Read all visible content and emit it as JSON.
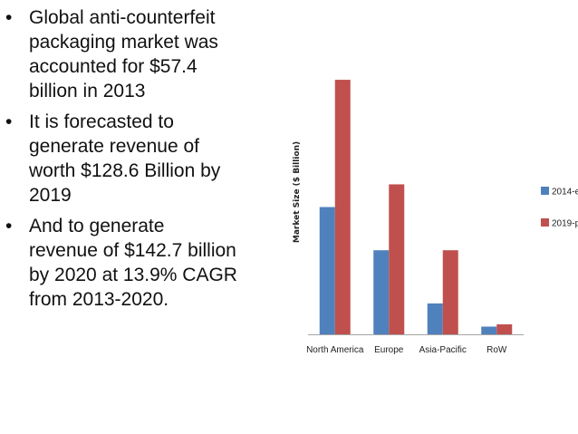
{
  "bullets": [
    {
      "text": " Global anti-counterfeit\npackaging market was\naccounted for $57.4\nbillion in 2013"
    },
    {
      "text": "It is forecasted to\ngenerate revenue of\nworth $128.6 Billion by\n2019"
    },
    {
      "text": "And  to generate\nrevenue of $142.7 billion\nby 2020 at 13.9% CAGR\nfrom 2013-2020."
    }
  ],
  "bullet_glyph": "•",
  "colors": {
    "series_2014": "#4f81bd",
    "series_2019": "#c0504d",
    "axis": "#a6a6a6"
  },
  "chart_data": {
    "type": "bar",
    "title": "",
    "xlabel": "",
    "ylabel": "Market Size ($ Billion)",
    "categories": [
      "North America",
      "Europe",
      "Asia-Pacific",
      "RoW"
    ],
    "series": [
      {
        "name": "2014-e",
        "values": [
          28.0,
          18.5,
          6.8,
          1.7
        ]
      },
      {
        "name": "2019-p",
        "values": [
          56.0,
          33.0,
          18.5,
          2.2
        ]
      }
    ],
    "ylim": [
      0,
      60
    ],
    "grid": false,
    "legend_position": "right"
  }
}
